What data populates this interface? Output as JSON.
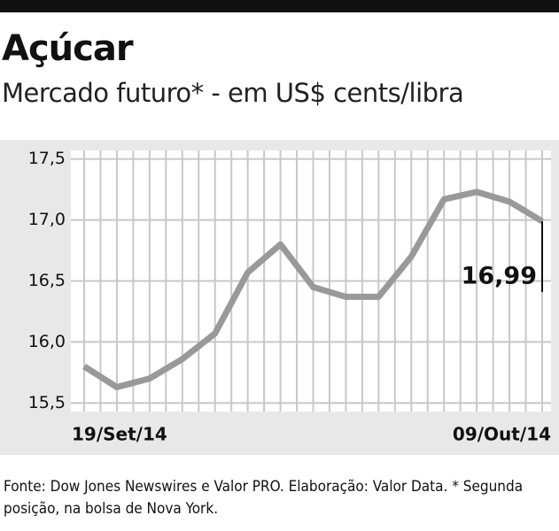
{
  "chart_data": {
    "type": "line",
    "title": "Açúcar",
    "subtitle": "Mercado futuro* - em US$ cents/libra",
    "categories": [
      "19/Set/14",
      null,
      null,
      null,
      null,
      null,
      null,
      null,
      null,
      null,
      null,
      null,
      null,
      null,
      "09/Out/14"
    ],
    "series": [
      {
        "name": "Açúcar",
        "color": "#999999",
        "values": [
          15.8,
          15.63,
          15.7,
          15.86,
          16.07,
          16.57,
          16.8,
          16.45,
          16.37,
          16.37,
          16.7,
          17.17,
          17.23,
          17.15,
          16.99
        ],
        "value_labels": [
          null,
          null,
          null,
          null,
          null,
          null,
          null,
          null,
          null,
          null,
          null,
          null,
          null,
          null,
          "16,99"
        ]
      }
    ],
    "ylim": [
      15.43,
      17.57
    ],
    "yticks": [
      {
        "value": 15.5,
        "label": "15,5"
      },
      {
        "value": 16.0,
        "label": "16,0"
      },
      {
        "value": 16.5,
        "label": "16,5"
      },
      {
        "value": 17.0,
        "label": "17,0"
      },
      {
        "value": 17.5,
        "label": "17,5"
      }
    ],
    "grid": true,
    "source": "Fonte: Dow Jones Newswires e Valor PRO. Elaboração: Valor Data. * Segunda posição, na bolsa de Nova York."
  }
}
